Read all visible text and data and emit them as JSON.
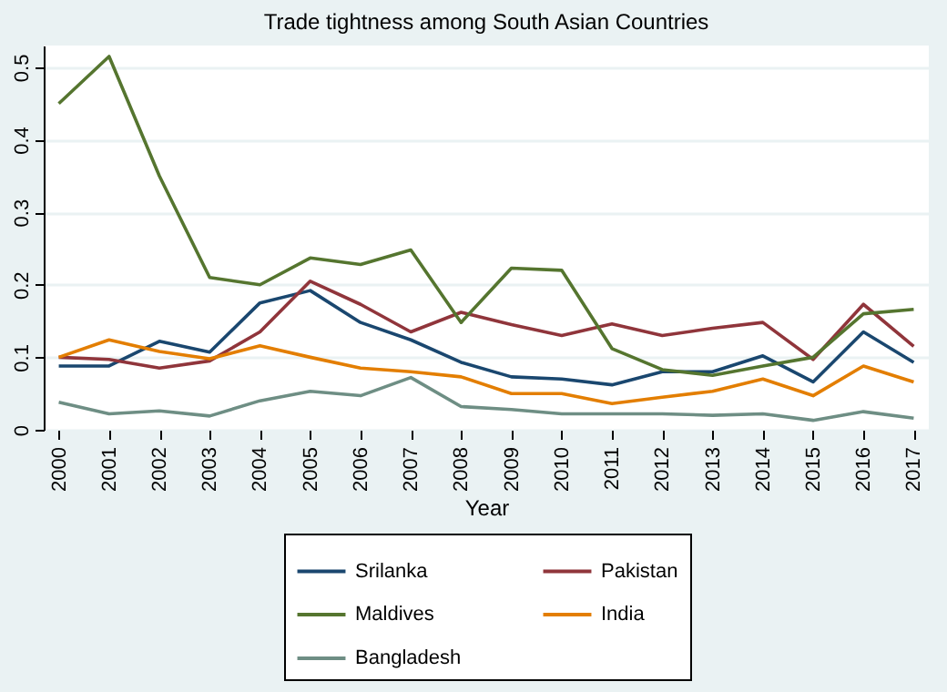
{
  "chart_data": {
    "type": "line",
    "title": "Trade tightness among South Asian Countries",
    "xlabel": "Year",
    "categories": [
      "2000",
      "2001",
      "2002",
      "2003",
      "2004",
      "2005",
      "2006",
      "2007",
      "2008",
      "2009",
      "2010",
      "2011",
      "2012",
      "2013",
      "2014",
      "2015",
      "2016",
      "2017"
    ],
    "ylim": [
      0,
      0.53
    ],
    "yticks": [
      0,
      0.1,
      0.2,
      0.3,
      0.4,
      0.5
    ],
    "grid": "y",
    "legend": "bottom",
    "marker": "none",
    "series": [
      {
        "name": "Srilanka",
        "color": "#1a476f",
        "values": [
          0.088,
          0.088,
          0.122,
          0.107,
          0.175,
          0.192,
          0.148,
          0.124,
          0.093,
          0.073,
          0.07,
          0.062,
          0.08,
          0.08,
          0.102,
          0.066,
          0.135,
          0.093
        ]
      },
      {
        "name": "Pakistan",
        "color": "#90353b",
        "values": [
          0.1,
          0.097,
          0.085,
          0.095,
          0.135,
          0.205,
          0.173,
          0.135,
          0.162,
          0.145,
          0.13,
          0.146,
          0.13,
          0.14,
          0.148,
          0.097,
          0.173,
          0.115
        ]
      },
      {
        "name": "Maldives",
        "color": "#55752f",
        "values": [
          0.45,
          0.515,
          0.35,
          0.21,
          0.2,
          0.237,
          0.228,
          0.248,
          0.148,
          0.223,
          0.22,
          0.112,
          0.083,
          0.075,
          0.088,
          0.1,
          0.16,
          0.166
        ]
      },
      {
        "name": "India",
        "color": "#e37e00",
        "values": [
          0.1,
          0.124,
          0.108,
          0.098,
          0.116,
          0.1,
          0.085,
          0.08,
          0.073,
          0.05,
          0.05,
          0.036,
          0.045,
          0.053,
          0.07,
          0.047,
          0.088,
          0.066
        ]
      },
      {
        "name": "Bangladesh",
        "color": "#6e8e84",
        "values": [
          0.038,
          0.022,
          0.026,
          0.019,
          0.04,
          0.053,
          0.047,
          0.072,
          0.032,
          0.028,
          0.022,
          0.022,
          0.022,
          0.02,
          0.022,
          0.013,
          0.025,
          0.016
        ]
      }
    ]
  }
}
